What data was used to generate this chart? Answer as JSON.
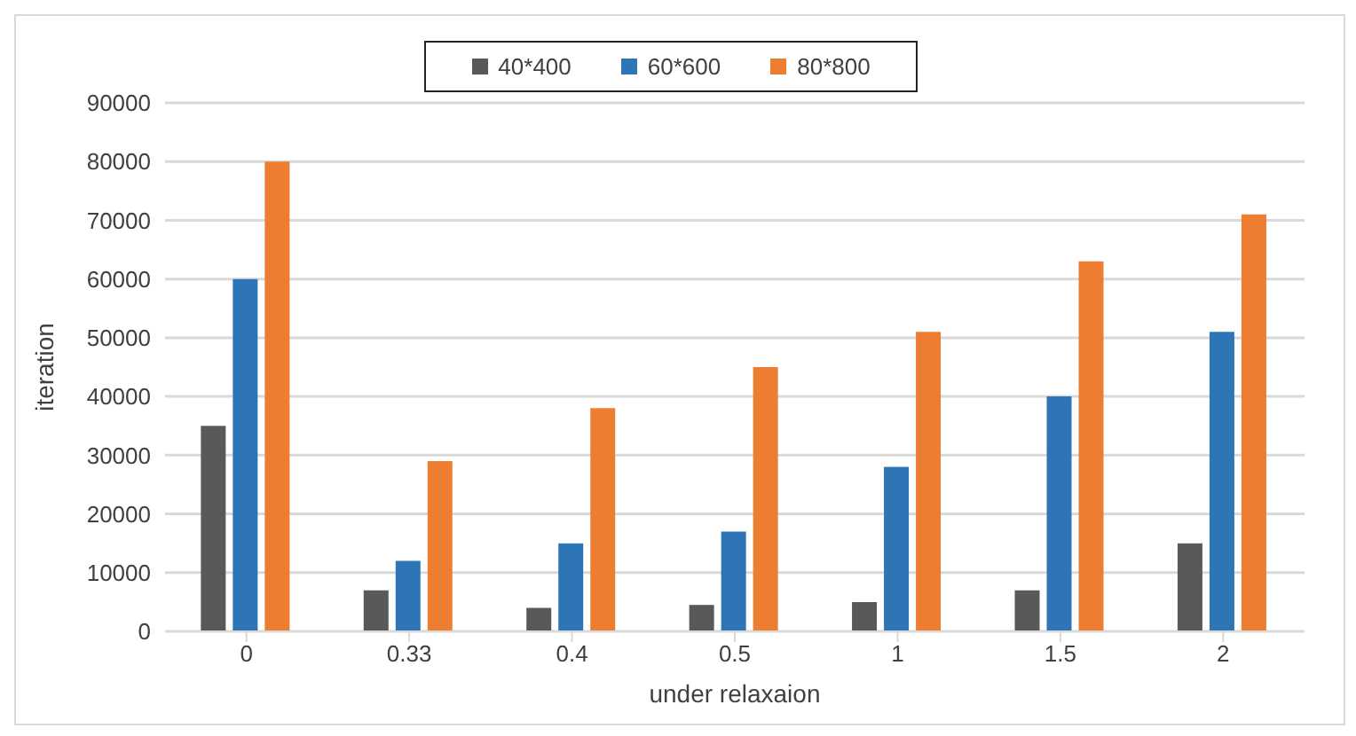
{
  "chart_data": {
    "type": "bar",
    "xlabel": "under relaxaion",
    "ylabel": "iteration",
    "categories": [
      "0",
      "0.33",
      "0.4",
      "0.5",
      "1",
      "1.5",
      "2"
    ],
    "series": [
      {
        "name": "40*400",
        "color": "#595959",
        "values": [
          35000,
          7000,
          4000,
          4500,
          5000,
          7000,
          15000
        ]
      },
      {
        "name": "60*600",
        "color": "#2e75b6",
        "values": [
          60000,
          12000,
          15000,
          17000,
          28000,
          40000,
          51000
        ]
      },
      {
        "name": "80*800",
        "color": "#ed7d31",
        "values": [
          80000,
          29000,
          38000,
          45000,
          51000,
          63000,
          71000
        ]
      }
    ],
    "ylim": [
      0,
      90000
    ],
    "yticks": [
      0,
      10000,
      20000,
      30000,
      40000,
      50000,
      60000,
      70000,
      80000,
      90000
    ],
    "grid": "y",
    "legend": "top"
  }
}
